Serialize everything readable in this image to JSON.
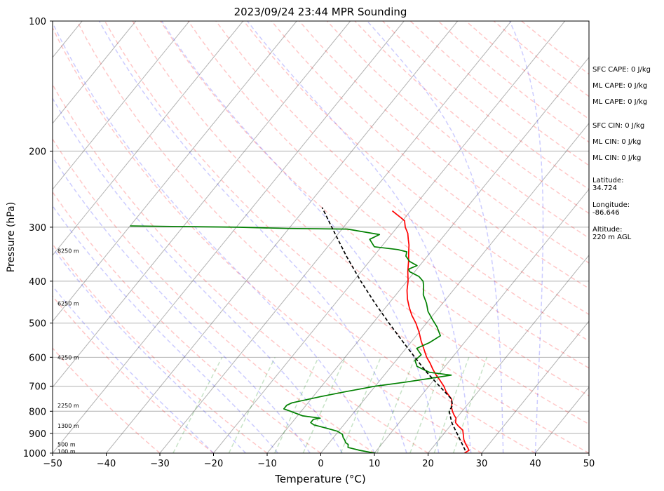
{
  "chart_data": {
    "type": "skew-t log-p sounding",
    "title": "2023/09/24 23:44 MPR Sounding",
    "xlabel": "Temperature (°C)",
    "ylabel": "Pressure (hPa)",
    "xlim": [
      -50,
      50
    ],
    "ylim": [
      1000,
      100
    ],
    "y_scale": "log",
    "x_ticks": [
      "−50",
      "−40",
      "−30",
      "−20",
      "−10",
      "0",
      "10",
      "20",
      "30",
      "40",
      "50"
    ],
    "y_ticks": [
      "100",
      "200",
      "300",
      "400",
      "500",
      "600",
      "700",
      "800",
      "900",
      "1000"
    ],
    "grid": true,
    "height_labels": [
      {
        "p": 340,
        "label": "8250 m"
      },
      {
        "p": 450,
        "label": "6250 m"
      },
      {
        "p": 600,
        "label": "4250 m"
      },
      {
        "p": 775,
        "label": "2250 m"
      },
      {
        "p": 865,
        "label": "1300 m"
      },
      {
        "p": 955,
        "label": "500 m"
      },
      {
        "p": 990,
        "label": "100 m"
      }
    ],
    "side_info": [
      "SFC CAPE: 0 J/kg",
      "ML CAPE: 0 J/kg",
      "ML CAPE: 0 J/kg",
      "SFC CIN: 0 J/kg",
      "ML CIN: 0 J/kg",
      "ML CIN: 0 J/kg",
      [
        "Latitude:",
        "34.724"
      ],
      [
        "Longitude:",
        "-86.646"
      ],
      [
        "Altitude:",
        "220 m AGL"
      ]
    ],
    "series": [
      {
        "color": "#ff0000",
        "points": [
          [
            1000,
            26.8
          ],
          [
            985,
            27.2
          ],
          [
            970,
            26.5
          ],
          [
            950,
            25.5
          ],
          [
            930,
            24.6
          ],
          [
            910,
            23.9
          ],
          [
            885,
            23
          ],
          [
            865,
            21.5
          ],
          [
            850,
            20.5
          ],
          [
            830,
            19.9
          ],
          [
            815,
            19.0
          ],
          [
            800,
            18.2
          ],
          [
            785,
            17.5
          ],
          [
            770,
            17.0
          ],
          [
            750,
            16.2
          ],
          [
            735,
            15.1
          ],
          [
            720,
            14.0
          ],
          [
            700,
            12.8
          ],
          [
            680,
            11.3
          ],
          [
            660,
            9.7
          ],
          [
            640,
            8.2
          ],
          [
            620,
            6.8
          ],
          [
            600,
            5.2
          ],
          [
            575,
            3.5
          ],
          [
            550,
            1.7
          ],
          [
            525,
            0.0
          ],
          [
            500,
            -2.0
          ],
          [
            480,
            -3.9
          ],
          [
            460,
            -5.6
          ],
          [
            440,
            -7.2
          ],
          [
            420,
            -8.6
          ],
          [
            400,
            -9.8
          ],
          [
            380,
            -11.3
          ],
          [
            360,
            -12.7
          ],
          [
            345,
            -13.9
          ],
          [
            330,
            -15.1
          ],
          [
            320,
            -16.1
          ],
          [
            310,
            -17.1
          ],
          [
            300,
            -18.5
          ],
          [
            290,
            -19.6
          ],
          [
            285,
            -20.8
          ],
          [
            280,
            -22.1
          ],
          [
            275,
            -23.4
          ]
        ]
      },
      {
        "color": "#008000",
        "points": [
          [
            1000,
            10.2
          ],
          [
            995,
            9.0
          ],
          [
            985,
            6.8
          ],
          [
            970,
            4.2
          ],
          [
            955,
            3.8
          ],
          [
            945,
            3.0
          ],
          [
            935,
            2.6
          ],
          [
            920,
            1.8
          ],
          [
            905,
            1.2
          ],
          [
            890,
            -0.2
          ],
          [
            875,
            -2.8
          ],
          [
            860,
            -5.6
          ],
          [
            850,
            -6.5
          ],
          [
            835,
            -6.5
          ],
          [
            830,
            -5.4
          ],
          [
            820,
            -9.0
          ],
          [
            800,
            -12.0
          ],
          [
            790,
            -13.6
          ],
          [
            775,
            -13.6
          ],
          [
            765,
            -13.0
          ],
          [
            740,
            -8.6
          ],
          [
            720,
            -4.5
          ],
          [
            700,
            0.0
          ],
          [
            685,
            5.0
          ],
          [
            670,
            9.5
          ],
          [
            660,
            12.5
          ],
          [
            650,
            8.0
          ],
          [
            630,
            4.8
          ],
          [
            610,
            3.5
          ],
          [
            592,
            3.8
          ],
          [
            572,
            2.0
          ],
          [
            555,
            3.5
          ],
          [
            535,
            4.5
          ],
          [
            510,
            2.5
          ],
          [
            490,
            0.5
          ],
          [
            470,
            -1.5
          ],
          [
            450,
            -3.0
          ],
          [
            430,
            -4.9
          ],
          [
            410,
            -6.2
          ],
          [
            400,
            -7.0
          ],
          [
            390,
            -8.5
          ],
          [
            380,
            -11.0
          ],
          [
            375,
            -11.5
          ],
          [
            368,
            -10.5
          ],
          [
            360,
            -12.5
          ],
          [
            350,
            -14.0
          ],
          [
            342,
            -14.5
          ],
          [
            338,
            -16.5
          ],
          [
            333,
            -21.3
          ],
          [
            320,
            -23.3
          ],
          [
            312,
            -22.2
          ],
          [
            303,
            -29.0
          ],
          [
            302,
            -40.0
          ],
          [
            300,
            -50.0
          ],
          [
            299,
            -60.0
          ],
          [
            298,
            -70.0
          ]
        ]
      },
      {
        "color": "#000000",
        "dash": true,
        "points": [
          [
            985,
            26.5
          ],
          [
            850,
            19.8
          ],
          [
            800,
            17.6
          ],
          [
            775,
            17.3
          ],
          [
            750,
            16.2
          ],
          [
            700,
            12.0
          ],
          [
            650,
            7.5
          ],
          [
            600,
            3.0
          ],
          [
            550,
            -1.8
          ],
          [
            500,
            -7.0
          ],
          [
            450,
            -12.6
          ],
          [
            400,
            -18.6
          ],
          [
            350,
            -25.1
          ],
          [
            300,
            -32.2
          ],
          [
            270,
            -37.0
          ]
        ]
      }
    ],
    "isotherm_color": "#000000",
    "dry_adiabat_color": "#ff0000",
    "moist_adiabat_color": "#0000ff",
    "mixing_ratio_color": "#008000"
  }
}
